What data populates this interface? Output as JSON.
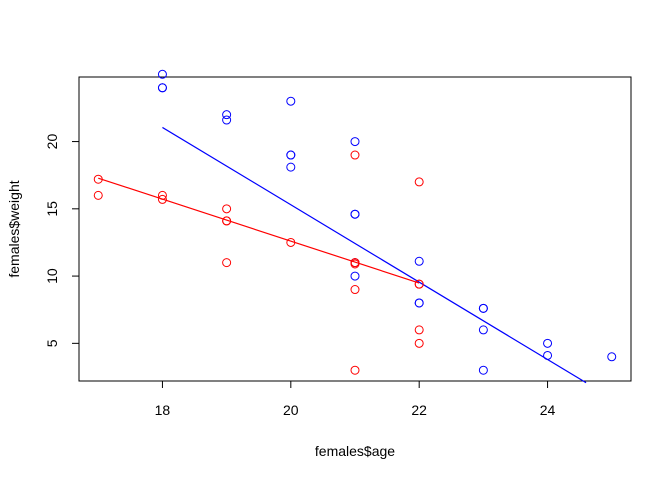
{
  "chart_data": {
    "type": "scatter",
    "title": "",
    "xlabel": "females$age",
    "ylabel": "females$weight",
    "xlim": [
      16.7,
      25.3
    ],
    "ylim": [
      2.2,
      24.8
    ],
    "x_ticks": [
      18,
      20,
      22,
      24
    ],
    "y_ticks": [
      5,
      10,
      15,
      20
    ],
    "grid": false,
    "legend": "none",
    "series": [
      {
        "color": "#0000ff",
        "points": [
          [
            18,
            25
          ],
          [
            18,
            24
          ],
          [
            18,
            24
          ],
          [
            19,
            22
          ],
          [
            19,
            21.6
          ],
          [
            20,
            23
          ],
          [
            20,
            19
          ],
          [
            20,
            19
          ],
          [
            20,
            18.1
          ],
          [
            21,
            20
          ],
          [
            21,
            14.6
          ],
          [
            21,
            14.6
          ],
          [
            21,
            11
          ],
          [
            21,
            10
          ],
          [
            22,
            11.1
          ],
          [
            22,
            8
          ],
          [
            22,
            8
          ],
          [
            23,
            7.6
          ],
          [
            23,
            7.6
          ],
          [
            23,
            6
          ],
          [
            23,
            3
          ],
          [
            24,
            5
          ],
          [
            24,
            4.1
          ],
          [
            25,
            4
          ]
        ],
        "fit_line": {
          "intercept": 72.8,
          "slope": -2.875,
          "x_range": [
            18,
            24.6
          ]
        }
      },
      {
        "color": "#ff0000",
        "points": [
          [
            17,
            17.2
          ],
          [
            17,
            16
          ],
          [
            18,
            16
          ],
          [
            18,
            15.7
          ],
          [
            19,
            15
          ],
          [
            19,
            14.1
          ],
          [
            19,
            14.1
          ],
          [
            19,
            11
          ],
          [
            20,
            12.5
          ],
          [
            21,
            19
          ],
          [
            21,
            11
          ],
          [
            21,
            11
          ],
          [
            21,
            10.9
          ],
          [
            21,
            9
          ],
          [
            21,
            3
          ],
          [
            22,
            17
          ],
          [
            22,
            9.4
          ],
          [
            22,
            9.4
          ],
          [
            22,
            6
          ],
          [
            22,
            5
          ]
        ],
        "fit_line": {
          "intercept": 43.8,
          "slope": -1.56,
          "x_range": [
            17,
            22
          ]
        }
      }
    ]
  }
}
